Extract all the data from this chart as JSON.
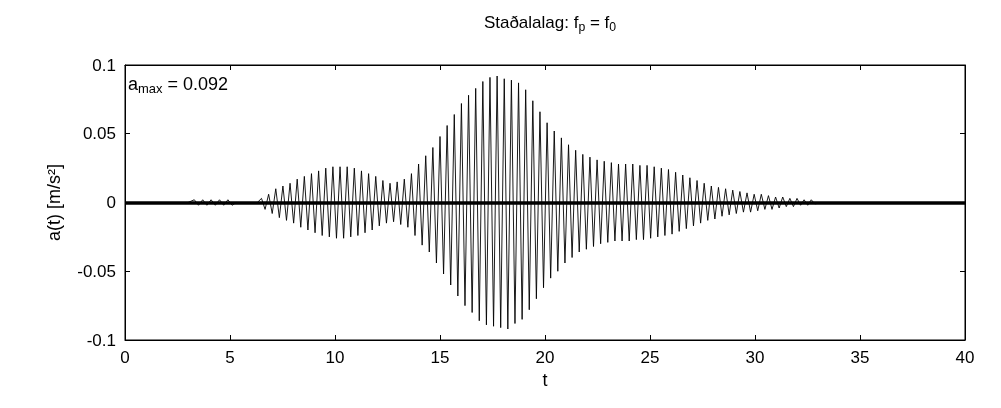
{
  "chart_data": {
    "type": "line",
    "title": "Staðalalag: f$_{p}$ = f$_{0}$",
    "xlabel": "t",
    "ylabel": "a(t) [m/s²]",
    "annotations": [
      "a$_{max}$ = 0.092"
    ],
    "xlim": [
      0,
      40
    ],
    "xticks": [
      0,
      5,
      10,
      15,
      20,
      25,
      30,
      35,
      40
    ],
    "ylim": [
      -0.1,
      0.1
    ],
    "yticks": [
      -0.1,
      -0.05,
      0,
      0.05,
      0.1
    ],
    "marker": "none",
    "ref_lines": [
      {
        "axis": "y",
        "value": 0,
        "color": "#000000"
      }
    ],
    "series": [
      {
        "color": "#000000",
        "x": [
          0,
          3.0,
          3.3,
          3.5,
          3.7,
          3.9,
          4.1,
          4.3,
          4.5,
          4.7,
          4.9,
          5.1,
          5.3,
          6.3,
          6.5,
          6.67,
          6.84,
          7.01,
          7.18,
          7.35,
          7.52,
          7.69,
          7.86,
          8.03,
          8.2,
          8.37,
          8.54,
          8.71,
          8.88,
          9.05,
          9.22,
          9.39,
          9.56,
          9.73,
          9.9,
          10.07,
          10.24,
          10.41,
          10.58,
          10.75,
          10.92,
          11.09,
          11.26,
          11.43,
          11.6,
          11.77,
          11.94,
          12.11,
          12.28,
          12.45,
          12.62,
          12.79,
          12.96,
          13.13,
          13.3,
          13.47,
          13.64,
          13.81,
          13.98,
          14.15,
          14.32,
          14.49,
          14.66,
          14.83,
          15.0,
          15.17,
          15.34,
          15.51,
          15.68,
          15.85,
          16.02,
          16.19,
          16.36,
          16.53,
          16.7,
          16.87,
          17.04,
          17.21,
          17.38,
          17.55,
          17.72,
          17.89,
          18.06,
          18.23,
          18.4,
          18.57,
          18.74,
          18.91,
          19.08,
          19.25,
          19.42,
          19.59,
          19.76,
          19.93,
          20.1,
          20.27,
          20.44,
          20.61,
          20.78,
          20.95,
          21.12,
          21.29,
          21.46,
          21.63,
          21.8,
          21.97,
          22.14,
          22.31,
          22.48,
          22.65,
          22.82,
          22.99,
          23.16,
          23.33,
          23.5,
          23.67,
          23.84,
          24.01,
          24.18,
          24.35,
          24.52,
          24.69,
          24.86,
          25.03,
          25.2,
          25.37,
          25.54,
          25.71,
          25.88,
          26.05,
          26.22,
          26.39,
          26.56,
          26.73,
          26.9,
          27.07,
          27.24,
          27.41,
          27.58,
          27.75,
          27.92,
          28.09,
          28.26,
          28.43,
          28.6,
          28.77,
          28.94,
          29.11,
          29.28,
          29.45,
          29.62,
          29.79,
          29.96,
          30.13,
          30.3,
          30.47,
          30.64,
          30.81,
          30.98,
          31.15,
          31.32,
          31.49,
          31.66,
          31.83,
          32.0,
          32.17,
          32.34,
          32.51,
          32.68,
          32.85,
          33.2,
          40
        ],
        "values": [
          0,
          0,
          0.002,
          -0.002,
          0.002,
          -0.002,
          0.002,
          -0.002,
          0.002,
          -0.002,
          0.002,
          -0.002,
          0,
          0,
          0.003,
          -0.005,
          0.006,
          -0.008,
          0.01,
          -0.011,
          0.012,
          -0.013,
          0.014,
          -0.015,
          0.017,
          -0.018,
          0.019,
          -0.02,
          0.021,
          -0.022,
          0.023,
          -0.024,
          0.025,
          -0.025,
          0.026,
          -0.026,
          0.026,
          -0.026,
          0.026,
          -0.025,
          0.025,
          -0.024,
          0.023,
          -0.022,
          0.021,
          -0.02,
          0.019,
          -0.017,
          0.016,
          -0.015,
          0.014,
          -0.014,
          0.015,
          -0.016,
          0.017,
          -0.018,
          0.021,
          -0.024,
          0.028,
          -0.031,
          0.034,
          -0.036,
          0.04,
          -0.044,
          0.048,
          -0.052,
          0.056,
          -0.06,
          0.064,
          -0.068,
          0.072,
          -0.075,
          0.078,
          -0.08,
          0.083,
          -0.086,
          0.088,
          -0.089,
          0.091,
          -0.09,
          0.092,
          -0.091,
          0.09,
          -0.092,
          0.089,
          -0.088,
          0.087,
          -0.085,
          0.082,
          -0.078,
          0.074,
          -0.07,
          0.066,
          -0.062,
          0.058,
          -0.055,
          0.052,
          -0.05,
          0.047,
          -0.044,
          0.042,
          -0.04,
          0.038,
          -0.036,
          0.035,
          -0.034,
          0.033,
          -0.032,
          0.031,
          -0.03,
          0.03,
          -0.029,
          0.029,
          -0.028,
          0.028,
          -0.028,
          0.028,
          -0.028,
          0.028,
          -0.027,
          0.027,
          -0.027,
          0.027,
          -0.026,
          0.026,
          -0.025,
          0.025,
          -0.024,
          0.024,
          -0.023,
          0.022,
          -0.021,
          0.02,
          -0.019,
          0.018,
          -0.017,
          0.016,
          -0.015,
          0.014,
          -0.013,
          0.012,
          -0.012,
          0.011,
          -0.01,
          0.01,
          -0.009,
          0.009,
          -0.008,
          0.008,
          -0.007,
          0.007,
          -0.007,
          0.006,
          -0.006,
          0.006,
          -0.005,
          0.005,
          -0.005,
          0.004,
          -0.004,
          0.004,
          -0.003,
          0.003,
          -0.003,
          0.003,
          -0.002,
          0.002,
          -0.002,
          0.002,
          -0.001,
          0,
          0
        ]
      }
    ]
  }
}
